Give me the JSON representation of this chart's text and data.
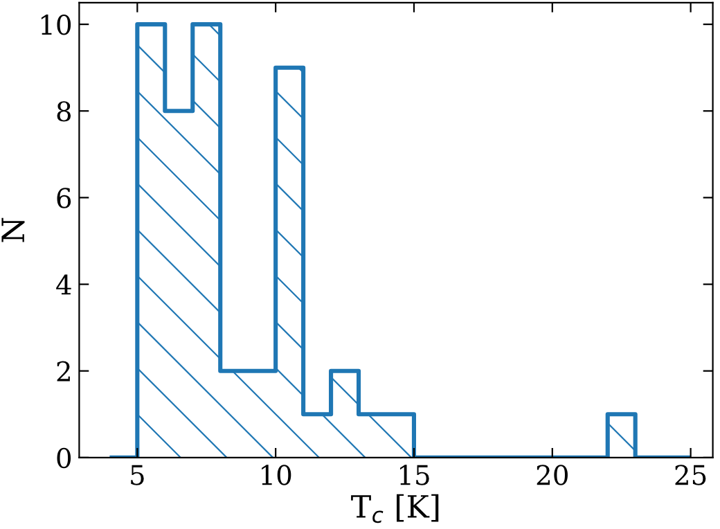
{
  "chart_data": {
    "type": "histogram",
    "xlabel": "T$_{c}$ [K]",
    "ylabel": "N",
    "bins": [
      4,
      5,
      6,
      7,
      8,
      9,
      10,
      11,
      12,
      13,
      14,
      15,
      16,
      17,
      18,
      19,
      20,
      21,
      22,
      23,
      24,
      25
    ],
    "values": [
      0,
      10,
      8,
      10,
      2,
      2,
      9,
      1,
      2,
      1,
      1,
      0,
      0,
      0,
      0,
      0,
      0,
      0,
      1,
      0,
      0
    ],
    "color": "#1f77b4",
    "xlim": [
      2.9,
      25.8
    ],
    "ylim": [
      0,
      10.5
    ],
    "xticks": [
      5,
      10,
      15,
      20,
      25
    ],
    "yticks": [
      0,
      2,
      4,
      6,
      8,
      10
    ],
    "grid": false,
    "legend": false
  }
}
